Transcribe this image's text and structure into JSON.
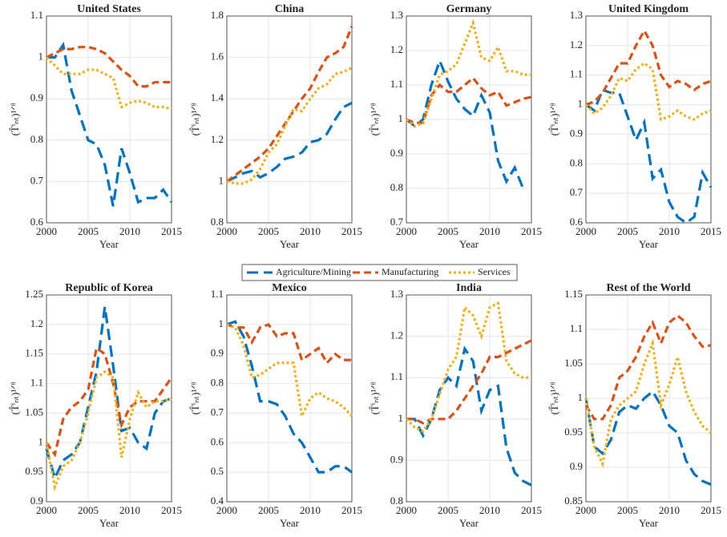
{
  "chart_data": [
    {
      "type": "line",
      "title": "United States",
      "xlabel": "Year",
      "ylabel": "(T̂ⁱₙₜ)¹ᐟᶿ",
      "x": [
        2000,
        2001,
        2002,
        2003,
        2004,
        2005,
        2006,
        2007,
        2008,
        2009,
        2010,
        2011,
        2012,
        2013,
        2014,
        2015
      ],
      "xlim": [
        2000,
        2015
      ],
      "xticks": [
        2000,
        2005,
        2010,
        2015
      ],
      "ylim": [
        0.6,
        1.1
      ],
      "yticks": [
        0.6,
        0.7,
        0.8,
        0.9,
        1,
        1.1
      ],
      "grid": true,
      "series": [
        {
          "name": "Agriculture/Mining",
          "color": "#0072BD",
          "linestyle": "longdash",
          "values": [
            1.0,
            1.0,
            1.03,
            0.92,
            0.86,
            0.8,
            0.79,
            0.74,
            0.64,
            0.78,
            0.72,
            0.65,
            0.66,
            0.66,
            0.68,
            0.65
          ]
        },
        {
          "name": "Manufacturing",
          "color": "#D95319",
          "linestyle": "dash",
          "values": [
            1.0,
            1.01,
            1.02,
            1.02,
            1.025,
            1.025,
            1.02,
            1.01,
            0.99,
            0.97,
            0.955,
            0.93,
            0.93,
            0.94,
            0.94,
            0.94
          ]
        },
        {
          "name": "Services",
          "color": "#EDB120",
          "linestyle": "dot",
          "values": [
            1.0,
            0.98,
            0.96,
            0.96,
            0.96,
            0.97,
            0.97,
            0.96,
            0.95,
            0.88,
            0.89,
            0.895,
            0.89,
            0.88,
            0.88,
            0.875
          ]
        }
      ]
    },
    {
      "type": "line",
      "title": "China",
      "xlabel": "Year",
      "ylabel": "(T̂ⁱₙₜ)¹ᐟᶿ",
      "x": [
        2000,
        2001,
        2002,
        2003,
        2004,
        2005,
        2006,
        2007,
        2008,
        2009,
        2010,
        2011,
        2012,
        2013,
        2014,
        2015
      ],
      "xlim": [
        2000,
        2015
      ],
      "xticks": [
        2000,
        2005,
        2010,
        2015
      ],
      "ylim": [
        0.8,
        1.8
      ],
      "yticks": [
        0.8,
        1,
        1.2,
        1.4,
        1.6,
        1.8
      ],
      "grid": true,
      "series": [
        {
          "name": "Agriculture/Mining",
          "color": "#0072BD",
          "linestyle": "longdash",
          "values": [
            1.0,
            1.02,
            1.04,
            1.05,
            1.02,
            1.04,
            1.07,
            1.11,
            1.12,
            1.14,
            1.19,
            1.2,
            1.23,
            1.3,
            1.36,
            1.38
          ]
        },
        {
          "name": "Manufacturing",
          "color": "#D95319",
          "linestyle": "dash",
          "values": [
            1.0,
            1.03,
            1.06,
            1.09,
            1.12,
            1.16,
            1.22,
            1.28,
            1.34,
            1.4,
            1.45,
            1.53,
            1.6,
            1.62,
            1.65,
            1.75
          ]
        },
        {
          "name": "Services",
          "color": "#EDB120",
          "linestyle": "dot",
          "values": [
            1.0,
            0.99,
            0.99,
            1.01,
            1.06,
            1.14,
            1.18,
            1.27,
            1.35,
            1.34,
            1.4,
            1.45,
            1.47,
            1.52,
            1.53,
            1.55
          ]
        }
      ]
    },
    {
      "type": "line",
      "title": "Germany",
      "xlabel": "Year",
      "ylabel": "(T̂ⁱₙₜ)¹ᐟᶿ",
      "x": [
        2000,
        2001,
        2002,
        2003,
        2004,
        2005,
        2006,
        2007,
        2008,
        2009,
        2010,
        2011,
        2012,
        2013,
        2014,
        2015
      ],
      "xlim": [
        2000,
        2015
      ],
      "xticks": [
        2000,
        2005,
        2010,
        2015
      ],
      "ylim": [
        0.7,
        1.3
      ],
      "yticks": [
        0.7,
        0.8,
        0.9,
        1,
        1.1,
        1.2,
        1.3
      ],
      "grid": true,
      "series": [
        {
          "name": "Agriculture/Mining",
          "color": "#0072BD",
          "linestyle": "longdash",
          "values": [
            1.0,
            0.98,
            1.0,
            1.1,
            1.17,
            1.11,
            1.06,
            1.03,
            1.01,
            1.07,
            1.02,
            0.88,
            0.82,
            0.86,
            0.8,
            null
          ]
        },
        {
          "name": "Manufacturing",
          "color": "#D95319",
          "linestyle": "dash",
          "values": [
            1.0,
            0.99,
            0.99,
            1.07,
            1.1,
            1.08,
            1.08,
            1.1,
            1.12,
            1.09,
            1.07,
            1.08,
            1.04,
            1.05,
            1.06,
            1.065
          ]
        },
        {
          "name": "Services",
          "color": "#EDB120",
          "linestyle": "dot",
          "values": [
            1.0,
            0.98,
            0.99,
            1.06,
            1.13,
            1.14,
            1.16,
            1.22,
            1.28,
            1.18,
            1.17,
            1.21,
            1.14,
            1.14,
            1.13,
            1.13
          ]
        }
      ]
    },
    {
      "type": "line",
      "title": "United Kingdom",
      "xlabel": "Year",
      "ylabel": "(T̂ⁱₙₜ)¹ᐟᶿ",
      "x": [
        2000,
        2001,
        2002,
        2003,
        2004,
        2005,
        2006,
        2007,
        2008,
        2009,
        2010,
        2011,
        2012,
        2013,
        2014,
        2015
      ],
      "xlim": [
        2000,
        2015
      ],
      "xticks": [
        2000,
        2005,
        2010,
        2015
      ],
      "ylim": [
        0.6,
        1.3
      ],
      "yticks": [
        0.6,
        0.7,
        0.8,
        0.9,
        1,
        1.1,
        1.2,
        1.3
      ],
      "grid": true,
      "series": [
        {
          "name": "Agriculture/Mining",
          "color": "#0072BD",
          "linestyle": "longdash",
          "values": [
            1.0,
            0.98,
            1.05,
            1.04,
            1.04,
            0.96,
            0.88,
            0.94,
            0.75,
            0.78,
            0.67,
            0.62,
            0.6,
            0.62,
            0.77,
            0.72
          ]
        },
        {
          "name": "Manufacturing",
          "color": "#D95319",
          "linestyle": "dash",
          "values": [
            1.0,
            1.01,
            1.04,
            1.09,
            1.14,
            1.14,
            1.2,
            1.25,
            1.2,
            1.1,
            1.06,
            1.08,
            1.07,
            1.05,
            1.07,
            1.08
          ]
        },
        {
          "name": "Services",
          "color": "#EDB120",
          "linestyle": "dot",
          "values": [
            1.0,
            0.97,
            0.99,
            1.03,
            1.09,
            1.08,
            1.12,
            1.14,
            1.12,
            0.95,
            0.96,
            0.98,
            0.96,
            0.95,
            0.97,
            0.98
          ]
        }
      ]
    },
    {
      "type": "line",
      "title": "Republic of Korea",
      "xlabel": "Year",
      "ylabel": "(T̂ⁱₙₜ)¹ᐟᶿ",
      "x": [
        2000,
        2001,
        2002,
        2003,
        2004,
        2005,
        2006,
        2007,
        2008,
        2009,
        2010,
        2011,
        2012,
        2013,
        2014,
        2015
      ],
      "xlim": [
        2000,
        2015
      ],
      "xticks": [
        2000,
        2005,
        2010,
        2015
      ],
      "ylim": [
        0.9,
        1.25
      ],
      "yticks": [
        0.9,
        0.95,
        1,
        1.05,
        1.1,
        1.15,
        1.2,
        1.25
      ],
      "grid": true,
      "series": [
        {
          "name": "Agriculture/Mining",
          "color": "#0072BD",
          "linestyle": "longdash",
          "values": [
            0.99,
            0.94,
            0.97,
            0.98,
            1.0,
            1.06,
            1.12,
            1.23,
            1.13,
            1.02,
            1.025,
            1.0,
            0.99,
            1.05,
            1.07,
            1.075
          ]
        },
        {
          "name": "Manufacturing",
          "color": "#D95319",
          "linestyle": "dash",
          "values": [
            1.0,
            0.98,
            1.04,
            1.06,
            1.07,
            1.09,
            1.16,
            1.15,
            1.1,
            1.03,
            1.06,
            1.07,
            1.07,
            1.07,
            1.09,
            1.11
          ]
        },
        {
          "name": "Services",
          "color": "#EDB120",
          "linestyle": "dot",
          "values": [
            1.0,
            0.925,
            0.96,
            0.97,
            1.0,
            1.05,
            1.11,
            1.12,
            1.11,
            0.975,
            1.04,
            1.085,
            1.06,
            1.07,
            1.07,
            1.075
          ]
        }
      ]
    },
    {
      "type": "line",
      "title": "Mexico",
      "xlabel": "Year",
      "ylabel": "(T̂ⁱₙₜ)¹ᐟᶿ",
      "x": [
        2000,
        2001,
        2002,
        2003,
        2004,
        2005,
        2006,
        2007,
        2008,
        2009,
        2010,
        2011,
        2012,
        2013,
        2014,
        2015
      ],
      "xlim": [
        2000,
        2015
      ],
      "xticks": [
        2000,
        2005,
        2010,
        2015
      ],
      "ylim": [
        0.4,
        1.1
      ],
      "yticks": [
        0.4,
        0.5,
        0.6,
        0.7,
        0.8,
        0.9,
        1,
        1.1
      ],
      "grid": true,
      "series": [
        {
          "name": "Agriculture/Mining",
          "color": "#0072BD",
          "linestyle": "longdash",
          "values": [
            1.0,
            1.01,
            0.96,
            0.86,
            0.74,
            0.74,
            0.73,
            0.69,
            0.63,
            0.6,
            0.55,
            0.5,
            0.5,
            0.52,
            0.52,
            0.5
          ]
        },
        {
          "name": "Manufacturing",
          "color": "#D95319",
          "linestyle": "dash",
          "values": [
            1.0,
            0.99,
            0.99,
            0.94,
            0.99,
            1.0,
            0.96,
            0.97,
            0.97,
            0.88,
            0.9,
            0.92,
            0.87,
            0.9,
            0.88,
            0.88
          ]
        },
        {
          "name": "Services",
          "color": "#EDB120",
          "linestyle": "dot",
          "values": [
            1.0,
            0.99,
            0.93,
            0.82,
            0.83,
            0.85,
            0.87,
            0.87,
            0.87,
            0.69,
            0.75,
            0.77,
            0.75,
            0.74,
            0.72,
            0.69
          ]
        }
      ]
    },
    {
      "type": "line",
      "title": "India",
      "xlabel": "Year",
      "ylabel": "(T̂ⁱₙₜ)¹ᐟᶿ",
      "x": [
        2000,
        2001,
        2002,
        2003,
        2004,
        2005,
        2006,
        2007,
        2008,
        2009,
        2010,
        2011,
        2012,
        2013,
        2014,
        2015
      ],
      "xlim": [
        2000,
        2015
      ],
      "xticks": [
        2000,
        2005,
        2010,
        2015
      ],
      "ylim": [
        0.8,
        1.3
      ],
      "yticks": [
        0.8,
        0.9,
        1,
        1.1,
        1.2,
        1.3
      ],
      "grid": true,
      "series": [
        {
          "name": "Agriculture/Mining",
          "color": "#0072BD",
          "linestyle": "longdash",
          "values": [
            1.0,
            1.0,
            0.96,
            1.0,
            1.07,
            1.1,
            1.08,
            1.17,
            1.14,
            1.02,
            1.07,
            1.08,
            0.93,
            0.87,
            0.85,
            0.84
          ]
        },
        {
          "name": "Manufacturing",
          "color": "#D95319",
          "linestyle": "dash",
          "values": [
            1.0,
            1.0,
            0.99,
            1.0,
            1.0,
            1.0,
            1.02,
            1.05,
            1.08,
            1.11,
            1.15,
            1.15,
            1.16,
            1.17,
            1.18,
            1.19
          ]
        },
        {
          "name": "Services",
          "color": "#EDB120",
          "linestyle": "dot",
          "values": [
            1.0,
            0.98,
            0.97,
            1.0,
            1.06,
            1.12,
            1.15,
            1.27,
            1.25,
            1.2,
            1.27,
            1.28,
            1.14,
            1.11,
            1.1,
            1.1
          ]
        }
      ]
    },
    {
      "type": "line",
      "title": "Rest of the World",
      "xlabel": "Year",
      "ylabel": "(T̂ⁱₙₜ)¹ᐟᶿ",
      "x": [
        2000,
        2001,
        2002,
        2003,
        2004,
        2005,
        2006,
        2007,
        2008,
        2009,
        2010,
        2011,
        2012,
        2013,
        2014,
        2015
      ],
      "xlim": [
        2000,
        2015
      ],
      "xticks": [
        2000,
        2005,
        2010,
        2015
      ],
      "ylim": [
        0.85,
        1.15
      ],
      "yticks": [
        0.85,
        0.9,
        0.95,
        1,
        1.05,
        1.1,
        1.15
      ],
      "grid": true,
      "series": [
        {
          "name": "Agriculture/Mining",
          "color": "#0072BD",
          "linestyle": "longdash",
          "values": [
            1.0,
            0.93,
            0.92,
            0.94,
            0.98,
            0.99,
            0.985,
            1.0,
            1.01,
            0.99,
            0.96,
            0.95,
            0.91,
            0.89,
            0.88,
            0.875
          ]
        },
        {
          "name": "Manufacturing",
          "color": "#D95319",
          "linestyle": "dash",
          "values": [
            0.99,
            0.97,
            0.97,
            0.99,
            1.03,
            1.04,
            1.06,
            1.09,
            1.11,
            1.08,
            1.11,
            1.12,
            1.11,
            1.09,
            1.075,
            1.077
          ]
        },
        {
          "name": "Services",
          "color": "#EDB120",
          "linestyle": "dot",
          "values": [
            1.0,
            0.93,
            0.905,
            0.97,
            0.99,
            1.0,
            1.01,
            1.05,
            1.08,
            0.99,
            1.02,
            1.06,
            1.01,
            0.98,
            0.96,
            0.95
          ]
        }
      ]
    }
  ]
}
